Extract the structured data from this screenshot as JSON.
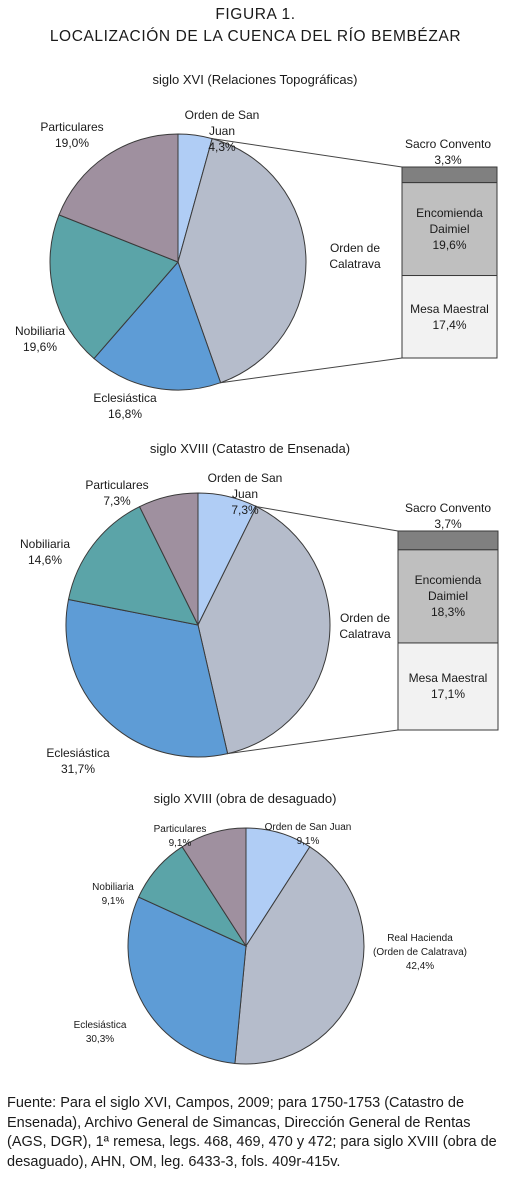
{
  "figure": {
    "label": "FIGURA 1.",
    "title": "LOCALIZACIÓN DE LA CUENCA DEL RÍO BEMBÉZAR"
  },
  "chart_data": [
    {
      "type": "bar-of-pie",
      "title": "siglo XVI (Relaciones Topográficas)",
      "categories": [
        "Orden de San Juan",
        "Orden de Calatrava",
        "Eclesiástica",
        "Nobiliaria",
        "Particulares"
      ],
      "values": [
        4.3,
        40.3,
        16.8,
        19.6,
        19.0
      ],
      "value_labels": [
        "4,3%",
        null,
        "16,8%",
        "19,6%",
        "19,0%"
      ],
      "colors": [
        "#b0cdf5",
        "#b5bccb",
        "#5e9cd6",
        "#5ba4a8",
        "#9f909f"
      ],
      "bar": {
        "categories": [
          "Sacro Convento",
          "Encomienda Daimiel",
          "Mesa Maestral"
        ],
        "values": [
          3.3,
          19.6,
          17.4
        ],
        "value_labels": [
          "3,3%",
          "19,6%",
          "17,4%"
        ],
        "colors": [
          "#808080",
          "#bfbfbf",
          "#f2f2f2"
        ]
      }
    },
    {
      "type": "bar-of-pie",
      "title": "siglo XVIII (Catastro de Ensenada)",
      "categories": [
        "Orden de San Juan",
        "Orden de Calatrava",
        "Eclesiástica",
        "Nobiliaria",
        "Particulares"
      ],
      "values": [
        7.3,
        39.1,
        31.7,
        14.6,
        7.3
      ],
      "value_labels": [
        "7,3%",
        null,
        "31,7%",
        "14,6%",
        "7,3%"
      ],
      "colors": [
        "#b0cdf5",
        "#b5bccb",
        "#5e9cd6",
        "#5ba4a8",
        "#9f909f"
      ],
      "bar": {
        "categories": [
          "Sacro Convento",
          "Encomienda Daimiel",
          "Mesa Maestral"
        ],
        "values": [
          3.7,
          18.3,
          17.1
        ],
        "value_labels": [
          "3,7%",
          "18,3%",
          "17,1%"
        ],
        "colors": [
          "#808080",
          "#bfbfbf",
          "#f2f2f2"
        ]
      }
    },
    {
      "type": "pie",
      "title": "siglo XVIII (obra de desaguado)",
      "categories": [
        "Orden de San Juan",
        "Real Hacienda (Orden de Calatrava)",
        "Eclesiástica",
        "Nobiliaria",
        "Particulares"
      ],
      "values": [
        9.1,
        42.4,
        30.3,
        9.1,
        9.1
      ],
      "value_labels": [
        "9,1%",
        "42,4%",
        "30,3%",
        "9,1%",
        "9,1%"
      ],
      "colors": [
        "#b0cdf5",
        "#b5bccb",
        "#5e9cd6",
        "#5ba4a8",
        "#9f909f"
      ]
    }
  ],
  "source": "Fuente: Para el siglo XVI, Campos, 2009; para 1750-1753 (Catastro de Ensenada), Archivo General de Simancas, Dirección General de Rentas (AGS, DGR), 1ª remesa, legs. 468, 469, 470 y 472; para siglo XVIII (obra de desaguado), AHN, OM, leg. 6433-3, fols. 409r-415v."
}
